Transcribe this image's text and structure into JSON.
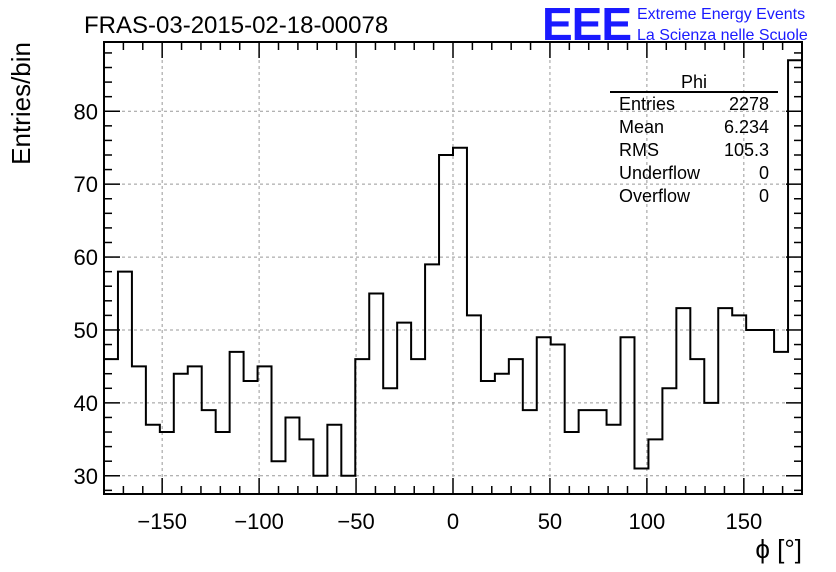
{
  "header": {
    "title": "FRAS-03-2015-02-18-00078",
    "logo_text": "EEE",
    "logo_line1": "Extreme Energy Events",
    "logo_line2": "La Scienza nelle Scuole"
  },
  "stats_box": {
    "name": "Phi",
    "rows": [
      {
        "label": "Entries",
        "value": "2278"
      },
      {
        "label": "Mean",
        "value": "6.234"
      },
      {
        "label": "RMS",
        "value": "105.3"
      },
      {
        "label": "Underflow",
        "value": "0"
      },
      {
        "label": "Overflow",
        "value": "0"
      }
    ]
  },
  "colors": {
    "line": "#000000",
    "grid": "#999999",
    "logo": "#1a1aff"
  },
  "chart_data": {
    "type": "histogram",
    "xlabel": "ϕ [°]",
    "ylabel": "Entries/bin",
    "xlim": [
      -180,
      180
    ],
    "ylim": [
      27.5,
      89.5
    ],
    "bin_edges_start": -180,
    "bin_width": 7.2,
    "values": [
      46,
      58,
      45,
      37,
      36,
      44,
      45,
      39,
      36,
      47,
      43,
      45,
      32,
      38,
      35,
      30,
      37,
      30,
      46,
      55,
      42,
      51,
      46,
      59,
      74,
      75,
      52,
      43,
      44,
      46,
      39,
      49,
      48,
      36,
      39,
      39,
      37,
      49,
      31,
      35,
      42,
      53,
      46,
      40,
      53,
      52,
      50,
      50,
      47,
      87
    ],
    "xticks": [
      -150,
      -100,
      -50,
      0,
      50,
      100,
      150
    ],
    "xtick_labels": [
      "−150",
      "−100",
      "−50",
      "0",
      "50",
      "100",
      "150"
    ],
    "yticks": [
      30,
      40,
      50,
      60,
      70,
      80
    ],
    "ytick_labels": [
      "30",
      "40",
      "50",
      "60",
      "70",
      "80"
    ],
    "grid": true
  }
}
